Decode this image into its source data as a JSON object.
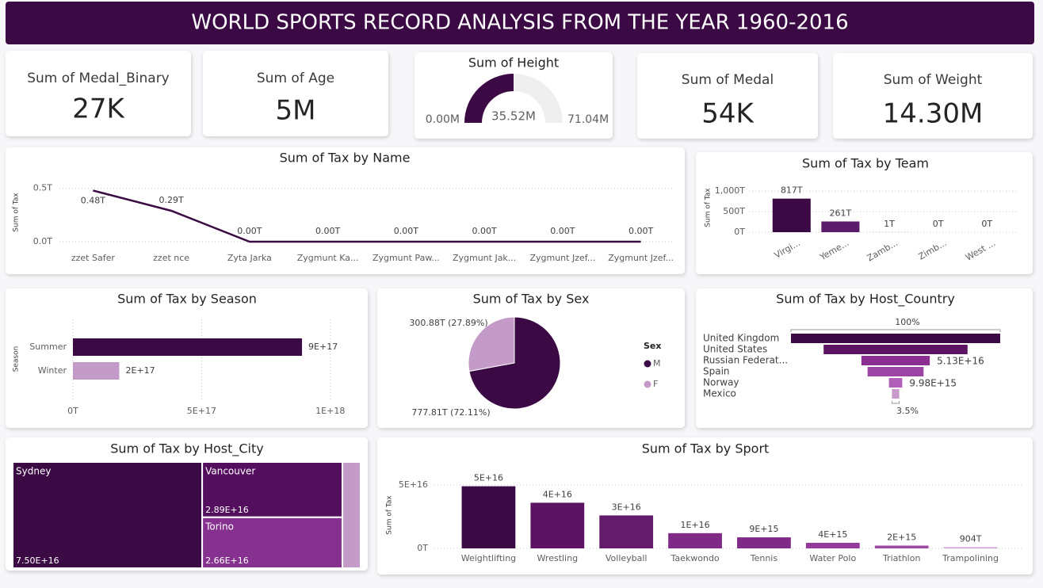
{
  "header": {
    "title": "WORLD SPORTS RECORD ANALYSIS FROM THE YEAR 1960-2016"
  },
  "cards": [
    {
      "label": "Sum of Medal_Binary",
      "value": "27K"
    },
    {
      "label": "Sum of Age",
      "value": "5M"
    },
    {
      "label": "Sum of Medal",
      "value": "54K"
    },
    {
      "label": "Sum of Weight",
      "value": "14.30M"
    }
  ],
  "chart_data": [
    {
      "type": "gauge",
      "title": "Sum of Height",
      "value": 35.52,
      "value_label": "35.52M",
      "ylim": [
        0,
        71.04
      ],
      "yticks": [
        {
          "value": 0,
          "label": "0.00M"
        },
        {
          "value": 71.04,
          "label": "71.04M"
        }
      ],
      "color": "#3b0a45",
      "track_color": "#efefef"
    },
    {
      "type": "line",
      "title": "Sum of Tax by Name",
      "y_label": "Sum of Tax",
      "categories": [
        "zzet Safer",
        "zzet nce",
        "Zyta Jarka",
        "Zygmunt Ka...",
        "Zygmunt Paw...",
        "Zygmunt Jak...",
        "Zygmunt Jzef...",
        "Zygmunt Jzef..."
      ],
      "values": [
        0.48,
        0.29,
        0,
        0,
        0,
        0,
        0,
        0
      ],
      "value_labels": [
        "0.48T",
        "0.29T",
        "0.00T",
        "0.00T",
        "0.00T",
        "0.00T",
        "0.00T",
        "0.00T"
      ],
      "ylim": [
        0,
        0.55
      ],
      "yticks": [
        {
          "value": 0,
          "label": "0.0T"
        },
        {
          "value": 0.5,
          "label": "0.5T"
        }
      ],
      "color": "#3b0a45",
      "grid": true
    },
    {
      "type": "bar",
      "title": "Sum of Tax by Team",
      "y_label": "Sum of Tax",
      "categories": [
        "Virgi...",
        "Yeme...",
        "Zamb...",
        "Zimb...",
        "West ..."
      ],
      "values": [
        817,
        261,
        1,
        0,
        0
      ],
      "value_labels": [
        "817T",
        "261T",
        "1T",
        "0T",
        "0T"
      ],
      "colors": [
        "#3b0a45",
        "#5c1a6a",
        "#8b3d94",
        "#b57bbd",
        "#c89bcc"
      ],
      "ylim": [
        0,
        1100
      ],
      "yticks": [
        {
          "value": 0,
          "label": "0T"
        },
        {
          "value": 500,
          "label": "500T"
        },
        {
          "value": 1000,
          "label": "1,000T"
        }
      ],
      "grid": true
    },
    {
      "type": "hbar",
      "title": "Sum of Tax by Season",
      "y_label": "Season",
      "categories": [
        "Summer",
        "Winter"
      ],
      "values": [
        8.9e+17,
        1.8e+17
      ],
      "value_labels": [
        "9E+17",
        "2E+17"
      ],
      "colors": [
        "#3b0a45",
        "#c49ac9"
      ],
      "xlim": [
        0,
        1.05e+18
      ],
      "xticks": [
        {
          "value": 0,
          "label": "0T"
        },
        {
          "value": 5e+17,
          "label": "5E+17"
        },
        {
          "value": 1e+18,
          "label": "1E+18"
        }
      ],
      "grid": true
    },
    {
      "type": "pie",
      "title": "Sum of Tax by Sex",
      "legend_title": "Sex",
      "categories": [
        "M",
        "F"
      ],
      "values": [
        777.81,
        300.88
      ],
      "value_labels": [
        "777.81T (72.11%)",
        "300.88T (27.89%)"
      ],
      "colors": [
        "#3b0a45",
        "#c49ac9"
      ]
    },
    {
      "type": "funnel",
      "title": "Sum of Tax by Host_Country",
      "categories": [
        "United Kingdom",
        "United States",
        "Russian Federat...",
        "Spain",
        "Norway",
        "Mexico"
      ],
      "values": [
        1.57e+17,
        1.08e+17,
        5.13e+16,
        4.2e+16,
        9980000000000000.0,
        5500000000000000.0
      ],
      "value_labels": [
        null,
        null,
        "5.13E+16",
        null,
        "9.98E+15",
        null
      ],
      "first_label": "100%",
      "last_label": "3.5%",
      "colors": [
        "#3b0a45",
        "#5c1462",
        "#8a2e92",
        "#9c44a4",
        "#b060b8",
        "#c89bcc"
      ]
    },
    {
      "type": "treemap",
      "title": "Sum of Tax by Host_City",
      "categories": [
        "Sydney",
        "Vancouver",
        "Torino",
        null
      ],
      "values": [
        7.5e+16,
        2.89e+16,
        2.66e+16,
        7200000000000000.0
      ],
      "value_labels": [
        "7.50E+16",
        "2.89E+16",
        "2.66E+16",
        null
      ],
      "colors": [
        "#3b0a45",
        "#530f5e",
        "#86318f",
        "#c49ac9"
      ]
    },
    {
      "type": "bar",
      "title": "Sum of Tax by Sport",
      "y_label": "Sum of Tax",
      "categories": [
        "Weightlifting",
        "Wrestling",
        "Volleyball",
        "Taekwondo",
        "Tennis",
        "Water Polo",
        "Triathlon",
        "Trampolining"
      ],
      "values": [
        4.9e+16,
        3.6e+16,
        2.6e+16,
        1.2e+16,
        8700000000000000.0,
        4400000000000000.0,
        2200000000000000.0,
        904000000000000.0
      ],
      "value_labels": [
        "5E+16",
        "4E+16",
        "3E+16",
        "1E+16",
        "9E+15",
        "4E+15",
        "2E+15",
        "904T"
      ],
      "colors": [
        "#3b0a45",
        "#5c1462",
        "#641b6a",
        "#7f2a86",
        "#7f2a86",
        "#943a9b",
        "#a04aa6",
        "#c89bcc"
      ],
      "ylim": [
        0,
        5.5e+16
      ],
      "yticks": [
        {
          "value": 0,
          "label": "0T"
        },
        {
          "value": 5e+16,
          "label": "5E+16"
        }
      ],
      "grid": true
    }
  ]
}
